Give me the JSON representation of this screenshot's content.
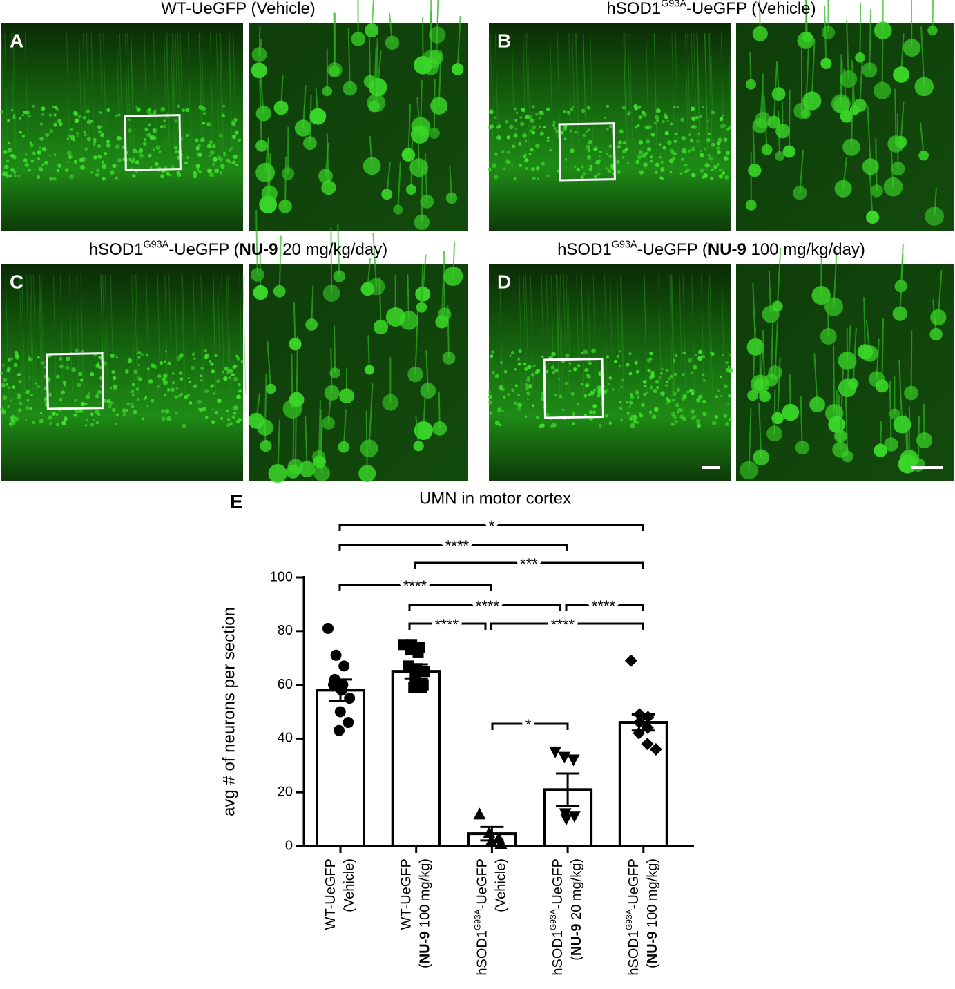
{
  "panels": [
    {
      "letter": "A",
      "title": [
        "WT-UeGFP (Vehicle)"
      ]
    },
    {
      "letter": "B",
      "title": [
        "hSOD1",
        {
          "sup": "G93A"
        },
        "-UeGFP (Vehicle)"
      ]
    },
    {
      "letter": "C",
      "title": [
        "hSOD1",
        {
          "sup": "G93A"
        },
        "-UeGFP (",
        {
          "b": "NU-9"
        },
        " 20 mg/kg/day)"
      ]
    },
    {
      "letter": "D",
      "title": [
        "hSOD1",
        {
          "sup": "G93A"
        },
        "-UeGFP (",
        {
          "b": "NU-9"
        },
        " 100 mg/kg/day)"
      ]
    }
  ],
  "chart_data": {
    "type": "bar",
    "panel_label": "E",
    "title": "UMN in motor cortex",
    "y_label": "avg # of neurons per section",
    "categories": [
      [
        [
          "WT-UeGFP"
        ],
        [
          "(Vehicle)"
        ]
      ],
      [
        [
          "WT-UeGFP"
        ],
        [
          "(",
          {
            "b": "NU-9"
          },
          " 100 mg/kg)"
        ]
      ],
      [
        [
          "hSOD1",
          {
            "sup": "G93A"
          },
          "-UeGFP"
        ],
        [
          "(Vehicle)"
        ]
      ],
      [
        [
          "hSOD1",
          {
            "sup": "G93A"
          },
          "-UeGFP"
        ],
        [
          "(",
          {
            "b": "NU-9"
          },
          " 20 mg/kg)"
        ]
      ],
      [
        [
          "hSOD1",
          {
            "sup": "G93A"
          },
          "-UeGFP"
        ],
        [
          "(",
          {
            "b": "NU-9"
          },
          " 100 mg/kg)"
        ]
      ]
    ],
    "values": [
      58,
      65,
      4.6,
      21,
      46
    ],
    "errors": [
      4,
      2.6,
      2.5,
      6,
      3
    ],
    "points": [
      [
        81,
        71,
        67,
        62,
        60,
        60,
        58,
        55,
        50,
        46,
        43
      ],
      [
        75,
        75,
        74,
        73,
        72,
        67,
        66,
        65,
        63,
        60,
        59,
        59
      ],
      [
        12,
        5,
        3,
        2,
        1
      ],
      [
        35,
        33,
        32,
        12,
        11,
        10
      ],
      [
        69,
        49,
        48,
        46,
        44,
        42,
        38,
        36
      ]
    ],
    "markers": [
      "circle",
      "square",
      "triangle",
      "triangle-down",
      "diamond"
    ],
    "color": "#000000",
    "fill": "#ffffff",
    "ylim": [
      0,
      100
    ],
    "yticks": [
      0,
      20,
      40,
      60,
      80,
      100
    ],
    "significance": [
      "*",
      "****",
      "***",
      "****",
      "****",
      "****",
      "****",
      "****",
      "*"
    ]
  }
}
